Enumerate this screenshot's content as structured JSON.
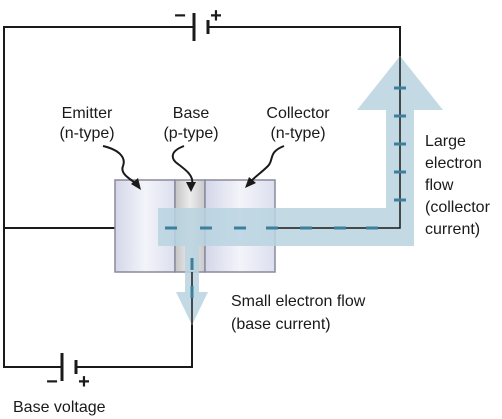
{
  "labels": {
    "emitter": [
      "Emitter",
      "(n-type)"
    ],
    "base": [
      "Base",
      "(p-type)"
    ],
    "collector": [
      "Collector",
      "(n-type)"
    ],
    "large_flow": [
      "Large",
      "electron",
      "flow",
      "(collector",
      "current)"
    ],
    "small_flow": [
      "Small electron flow",
      "(base current)"
    ],
    "base_voltage": "Base voltage"
  },
  "battery_top": {
    "minus": "−",
    "plus": "+"
  },
  "battery_bottom": {
    "minus": "−",
    "plus": "+"
  },
  "colors": {
    "wire": "#1a1a1a",
    "flow_arrow": "#b8d3e0",
    "electron_dash": "#3d7f9c",
    "block_fill": "#e6e8f2",
    "block_stroke": "#8a8a9a",
    "base_fill": "#d6d6d6"
  }
}
